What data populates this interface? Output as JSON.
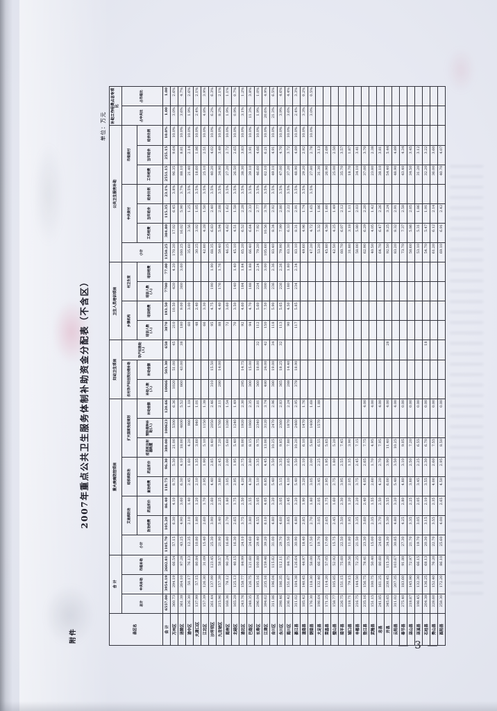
{
  "page": {
    "attachment_label": "附件",
    "unit_note": "单位：万元",
    "page_number": "— 3 —"
  },
  "title": "2007年重点公共卫生服务体制补助资金分配表（不含区）",
  "table": {
    "header_tree": [
      {
        "l": "县区名"
      },
      {
        "l": "合  计",
        "c": [
          {
            "l": "总计"
          },
          {
            "l": "中央补助"
          },
          {
            "l": "市级补助"
          }
        ]
      },
      {
        "l": "重大疾病防控项目",
        "c": [
          {
            "l": "小计"
          },
          {
            "l": "艾滋病防治",
            "c": [
              {
                "l": "防治经费"
              },
              {
                "l": "药品折价"
              }
            ]
          },
          {
            "l": "结核病防治",
            "c": [
              {
                "l": "查治经费"
              },
              {
                "l": "药品折价"
              }
            ]
          },
          {
            "l": "扩大国家免疫规划",
            "c": [
              {
                "l": "疫苗和注射器购置"
              },
              {
                "l": "预防接种补助(人)"
              },
              {
                "l": "补助金额"
              }
            ]
          }
        ]
      },
      {
        "l": "妇幼卫生项目",
        "c": [
          {
            "l": "农村孕产妇住院分娩补助",
            "c": [
              {
                "l": "补助人数(人)"
              },
              {
                "l": "补助金额"
              }
            ]
          },
          {
            "l": "孕产妇救助(人)"
          }
        ]
      },
      {
        "l": "卫生人员培训项目",
        "c": [
          {
            "l": "乡镇机构",
            "c": [
              {
                "l": "培训人数(人)"
              },
              {
                "l": "培训经费"
              }
            ]
          },
          {
            "l": "村卫生室",
            "c": [
              {
                "l": "培训人数(人)"
              },
              {
                "l": "培训经费"
              }
            ]
          }
        ]
      },
      {
        "l": "公共卫生服务补助",
        "c": [
          {
            "l": "小计"
          },
          {
            "l": "中央拨付",
            "c": [
              {
                "l": "工作经费"
              },
              {
                "l": "当年结余"
              },
              {
                "l": "结余比例"
              }
            ]
          },
          {
            "l": "市级拨付",
            "c": [
              {
                "l": "工作经费"
              },
              {
                "l": "当年结余"
              },
              {
                "l": "结余比例"
              }
            ]
          }
        ]
      },
      {
        "l": "补助工作经费占总专项比",
        "c": [
          {
            "l": "占中央比"
          },
          {
            "l": "占市级比"
          }
        ]
      }
    ],
    "rows": [
      [
        "合 计",
        "6557.00",
        "3954.19",
        "2602.81",
        "1105.70",
        "105.20",
        "86.40",
        "118.75",
        "96.30",
        "380.00",
        "100623",
        "120.66",
        "10066",
        "503.30",
        "658",
        "3870",
        "193.50",
        "7700",
        "77.00",
        "1350.25",
        "384.80",
        "115.35",
        "23.1%",
        "2551.15",
        "255.15",
        "10.0%",
        "1.00",
        "1.00"
      ],
      [
        "万州区",
        "360.73",
        "294.19",
        "66.54",
        "57.15",
        "6.30",
        "4.10",
        "8.75",
        "5.30",
        "21.00",
        "5300",
        "6.36",
        "1020",
        "51.00",
        "45",
        "210",
        "10.50",
        "420",
        "4.20",
        "170.20",
        "17.02",
        "6.45",
        "3.8%",
        "96.35",
        "9.64",
        "10.0%",
        "3.0%",
        "2.6%"
      ],
      [
        "涪陵区",
        "361.38",
        "264.10",
        "97.28",
        "43.25",
        "4.90",
        "3.60",
        "6.30",
        "4.10",
        "18.00",
        "4600",
        "5.52",
        "860",
        "43.00",
        "38",
        "180",
        "9.00",
        "360",
        "3.60",
        "160.25",
        "16.02",
        "5.90",
        "3.7%",
        "88.10",
        "8.81",
        "10.0%",
        "3.6%",
        "4.7%"
      ],
      [
        "渝中区",
        "126.30",
        "50.17",
        "76.13",
        "12.35",
        "2.10",
        "1.40",
        "2.45",
        "1.60",
        "4.20",
        "980",
        "1.18",
        "",
        "",
        "",
        "60",
        "3.00",
        "",
        "",
        "35.60",
        "3.56",
        "1.25",
        "3.5%",
        "21.40",
        "2.14",
        "10.0%",
        "1.9%",
        "2.6%"
      ],
      [
        "大渡口区",
        "137.99",
        "57.15",
        "80.84",
        "10.80",
        "1.80",
        "1.20",
        "2.10",
        "1.35",
        "3.60",
        "840",
        "1.01",
        "",
        "",
        "",
        "48",
        "2.40",
        "",
        "",
        "30.25",
        "3.02",
        "1.05",
        "3.5%",
        "18.60",
        "1.86",
        "10.0%",
        "2.4%",
        "2.1%"
      ],
      [
        "江北区",
        "157.39",
        "126.30",
        "31.09",
        "15.40",
        "2.60",
        "1.70",
        "2.95",
        "1.90",
        "5.10",
        "1150",
        "1.38",
        "",
        "",
        "",
        "66",
        "3.30",
        "",
        "",
        "42.80",
        "4.28",
        "1.50",
        "3.5%",
        "25.10",
        "2.51",
        "10.0%",
        "4.8%",
        "3.9%"
      ],
      [
        "沙坪坝区",
        "261.44",
        "137.99",
        "123.45",
        "25.30",
        "3.90",
        "2.60",
        "4.40",
        "2.85",
        "8.40",
        "2050",
        "2.46",
        "310",
        "15.50",
        "",
        "95",
        "4.75",
        "190",
        "1.90",
        "68.35",
        "6.83",
        "2.40",
        "3.5%",
        "40.20",
        "4.02",
        "10.0%",
        "6.2%",
        "6.3%"
      ],
      [
        "九龙坡区",
        "215.96",
        "157.39",
        "58.57",
        "21.90",
        "3.40",
        "2.25",
        "3.80",
        "2.45",
        "7.20",
        "1760",
        "2.11",
        "280",
        "14.00",
        "",
        "88",
        "4.40",
        "176",
        "1.76",
        "59.40",
        "5.94",
        "2.08",
        "3.5%",
        "34.90",
        "3.49",
        "10.0%",
        "8.2%",
        "2.1%"
      ],
      [
        "南岸区",
        "168.36",
        "78.12",
        "90.24",
        "16.80",
        "2.70",
        "1.80",
        "3.05",
        "2.00",
        "5.60",
        "1280",
        "1.54",
        "",
        "",
        "",
        "72",
        "3.60",
        "",
        "",
        "46.25",
        "4.62",
        "1.62",
        "3.5%",
        "27.20",
        "2.72",
        "10.0%",
        "1.9%",
        "1.1%"
      ],
      [
        "北碚区",
        "165.28",
        "125.13",
        "40.15",
        "16.30",
        "2.65",
        "1.75",
        "2.95",
        "1.95",
        "5.40",
        "1240",
        "1.49",
        "",
        "",
        "",
        "70",
        "3.50",
        "140",
        "1.40",
        "45.10",
        "4.51",
        "1.58",
        "3.5%",
        "26.50",
        "2.65",
        "10.0%",
        "0.9%",
        "0.7%"
      ],
      [
        "渝北区",
        "243.76",
        "158.77",
        "84.99",
        "24.10",
        "3.75",
        "2.50",
        "4.20",
        "2.75",
        "8.00",
        "1920",
        "2.30",
        "295",
        "14.75",
        "",
        "92",
        "4.60",
        "184",
        "1.84",
        "65.20",
        "6.52",
        "2.28",
        "3.5%",
        "38.30",
        "3.83",
        "10.0%",
        "3.1%",
        "1.2%"
      ],
      [
        "巴南区",
        "248.35",
        "126.75",
        "121.60",
        "24.60",
        "3.80",
        "2.55",
        "4.30",
        "2.80",
        "8.15",
        "1960",
        "2.35",
        "300",
        "15.00",
        "",
        "94",
        "4.70",
        "188",
        "1.88",
        "66.40",
        "6.64",
        "2.33",
        "3.5%",
        "39.10",
        "3.91",
        "10.0%",
        "11.3%",
        "3.8%"
      ],
      [
        "长寿区",
        "296.04",
        "195.16",
        "100.88",
        "29.40",
        "4.55",
        "3.05",
        "5.10",
        "3.35",
        "9.75",
        "2340",
        "2.81",
        "360",
        "18.00",
        "32",
        "112",
        "5.60",
        "224",
        "2.24",
        "79.20",
        "7.92",
        "2.77",
        "3.5%",
        "46.60",
        "4.66",
        "10.0%",
        "1.9%",
        "1.0%"
      ],
      [
        "江津区",
        "394.62",
        "235.16",
        "159.46",
        "39.20",
        "6.10",
        "4.05",
        "6.85",
        "4.45",
        "13.00",
        "3120",
        "3.74",
        "480",
        "24.00",
        "42",
        "150",
        "7.50",
        "300",
        "3.00",
        "105.60",
        "10.56",
        "3.70",
        "3.5%",
        "62.10",
        "6.21",
        "10.0%",
        "20.6%",
        "4.9%"
      ],
      [
        "合川区",
        "311.86",
        "196.04",
        "115.82",
        "31.00",
        "4.80",
        "3.20",
        "5.40",
        "3.50",
        "10.25",
        "2470",
        "2.96",
        "380",
        "19.00",
        "34",
        "118",
        "5.90",
        "236",
        "2.36",
        "83.40",
        "8.34",
        "2.92",
        "3.5%",
        "49.10",
        "4.91",
        "10.0%",
        "21.3%",
        "6.5%"
      ],
      [
        "永川区",
        "298.46",
        "186.35",
        "112.11",
        "29.70",
        "4.60",
        "3.05",
        "5.15",
        "3.35",
        "9.85",
        "2360",
        "2.83",
        "365",
        "18.25",
        "32",
        "113",
        "5.65",
        "226",
        "2.26",
        "79.90",
        "7.99",
        "2.80",
        "3.5%",
        "47.00",
        "4.70",
        "10.0%",
        "3.9%",
        "4.6%"
      ],
      [
        "南川区",
        "236.42",
        "151.67",
        "84.75",
        "23.50",
        "3.65",
        "2.45",
        "4.10",
        "2.65",
        "7.80",
        "1870",
        "2.24",
        "288",
        "14.40",
        "",
        "90",
        "4.50",
        "180",
        "1.80",
        "63.30",
        "6.33",
        "2.22",
        "3.5%",
        "37.20",
        "3.72",
        "10.0%",
        "3.6%",
        "4.4%"
      ],
      [
        "綦江县",
        "311.02",
        "184.38",
        "126.64",
        "30.90",
        "4.80",
        "3.20",
        "5.40",
        "3.50",
        "10.20",
        "2460",
        "2.95",
        "378",
        "18.90",
        "",
        "117",
        "5.85",
        "234",
        "2.34",
        "83.10",
        "8.31",
        "2.91",
        "3.5%",
        "48.90",
        "4.89",
        "10.0%",
        "2.4%",
        "3.3%"
      ],
      [
        "潼南县",
        "185.42",
        "140.45",
        "44.97",
        "18.40",
        "2.85",
        "1.90",
        "3.20",
        "2.10",
        "6.10",
        "1470",
        "1.76",
        "",
        "",
        "",
        "",
        "",
        "",
        "",
        "49.60",
        "4.96",
        "1.74",
        "3.5%",
        "29.20",
        "2.92",
        "10.0%",
        "3.3%",
        "0.2%"
      ],
      [
        "铜梁县",
        "176.30",
        "118.30",
        "58.00",
        "17.50",
        "2.70",
        "1.80",
        "3.05",
        "2.00",
        "5.80",
        "1400",
        "1.68",
        "",
        "",
        "",
        "",
        "",
        "",
        "",
        "47.20",
        "4.72",
        "1.65",
        "3.5%",
        "27.80",
        "2.78",
        "10.0%",
        "3.0%",
        "0.5%"
      ],
      [
        "大足县",
        "198.64",
        "132.40",
        "66.24",
        "19.70",
        "3.05",
        "2.05",
        "3.45",
        "2.25",
        "6.55",
        "1570",
        "1.88",
        "",
        "",
        "",
        "",
        "",
        "",
        "",
        "53.20",
        "5.32",
        "1.86",
        "",
        "31.30",
        "3.13",
        "",
        "",
        ""
      ],
      [
        "荣昌县",
        "171.25",
        "114.20",
        "57.05",
        "17.00",
        "2.65",
        "1.75",
        "2.95",
        "1.95",
        "5.65",
        "",
        "",
        "",
        "",
        "",
        "",
        "",
        "",
        "",
        "45.80",
        "4.58",
        "1.60",
        "",
        "26.90",
        "2.69",
        "",
        "",
        ""
      ],
      [
        "璧山县",
        "158.77",
        "105.85",
        "52.92",
        "15.75",
        "2.45",
        "1.60",
        "2.75",
        "1.80",
        "5.20",
        "",
        "",
        "",
        "",
        "",
        "",
        "",
        "",
        "",
        "42.50",
        "4.25",
        "1.49",
        "",
        "25.00",
        "2.50",
        "",
        "",
        ""
      ],
      [
        "梁平县",
        "226.75",
        "151.15",
        "75.60",
        "22.50",
        "3.50",
        "2.30",
        "3.95",
        "2.55",
        "7.45",
        "",
        "",
        "",
        "",
        "",
        "",
        "",
        "",
        "",
        "60.70",
        "6.07",
        "2.12",
        "",
        "35.70",
        "3.57",
        "",
        "",
        ""
      ],
      [
        "城口县",
        "118.71",
        "79.15",
        "39.56",
        "11.80",
        "1.85",
        "1.20",
        "2.05",
        "1.35",
        "3.90",
        "",
        "",
        "",
        "",
        "",
        "",
        "",
        "",
        "",
        "31.80",
        "3.18",
        "1.11",
        "",
        "18.70",
        "1.87",
        "",
        "",
        ""
      ],
      [
        "丰都县",
        "216.75",
        "144.50",
        "72.25",
        "21.50",
        "3.35",
        "2.20",
        "3.75",
        "2.45",
        "7.15",
        "",
        "",
        "",
        "",
        "",
        "",
        "",
        "",
        "",
        "58.00",
        "5.80",
        "2.03",
        "",
        "34.10",
        "3.41",
        "",
        "",
        ""
      ],
      [
        "垫江县",
        "235.16",
        "156.75",
        "78.41",
        "23.30",
        "3.60",
        "2.40",
        "4.05",
        "2.65",
        "7.75",
        "",
        "4.00",
        "",
        "",
        "",
        "",
        "",
        "",
        "",
        "62.90",
        "6.29",
        "2.20",
        "",
        "37.00",
        "3.70",
        "",
        "",
        ""
      ],
      [
        "武隆县",
        "151.15",
        "100.75",
        "50.40",
        "15.00",
        "2.35",
        "1.55",
        "2.60",
        "1.70",
        "4.95",
        "",
        "4.00",
        "",
        "",
        "",
        "",
        "",
        "",
        "",
        "40.50",
        "4.05",
        "1.42",
        "",
        "23.80",
        "2.38",
        "",
        "",
        ""
      ],
      [
        "忠县",
        "241.85",
        "161.25",
        "80.60",
        "24.00",
        "3.70",
        "2.50",
        "4.20",
        "2.70",
        "7.95",
        "",
        "4.00",
        "",
        "",
        "",
        "",
        "",
        "",
        "",
        "64.70",
        "6.47",
        "2.26",
        "",
        "38.10",
        "3.81",
        "",
        "",
        ""
      ],
      [
        "开县",
        "345.65",
        "230.45",
        "115.20",
        "34.30",
        "5.30",
        "3.55",
        "6.00",
        "3.90",
        "11.40",
        "",
        "4.00",
        "",
        "",
        "28",
        "",
        "",
        "",
        "",
        "92.50",
        "9.25",
        "3.24",
        "",
        "54.40",
        "5.44",
        "",
        "",
        ""
      ],
      [
        "云阳县",
        "311.02",
        "207.35",
        "103.67",
        "30.85",
        "4.80",
        "3.20",
        "5.40",
        "3.50",
        "10.25",
        "",
        "4.00",
        "",
        "",
        "",
        "",
        "",
        "",
        "",
        "83.20",
        "8.32",
        "2.91",
        "",
        "48.90",
        "4.89",
        "",
        "",
        ""
      ],
      [
        "奉节县",
        "275.40",
        "183.60",
        "91.80",
        "27.30",
        "4.25",
        "2.80",
        "4.80",
        "3.10",
        "9.05",
        "",
        "0.00",
        "",
        "",
        "",
        "",
        "",
        "",
        "",
        "73.70",
        "7.37",
        "2.58",
        "",
        "43.40",
        "4.34",
        "",
        "",
        ""
      ],
      [
        "巫山县",
        "218.87",
        "145.90",
        "72.97",
        "21.70",
        "3.35",
        "2.25",
        "3.80",
        "2.50",
        "7.20",
        "",
        "0.00",
        "",
        "",
        "",
        "",
        "",
        "",
        "",
        "58.60",
        "5.86",
        "2.05",
        "",
        "34.50",
        "3.45",
        "",
        "",
        ""
      ],
      [
        "巫溪县",
        "198.45",
        "132.30",
        "66.15",
        "19.70",
        "3.05",
        "2.05",
        "3.45",
        "2.25",
        "6.55",
        "",
        "0.00",
        "",
        "",
        "",
        "",
        "",
        "",
        "",
        "53.10",
        "5.31",
        "1.86",
        "",
        "31.20",
        "3.12",
        "",
        "",
        ""
      ],
      [
        "石柱县",
        "204.38",
        "136.25",
        "68.13",
        "20.30",
        "3.15",
        "2.10",
        "3.55",
        "2.30",
        "6.70",
        "",
        "0.00",
        "",
        "",
        "18",
        "",
        "",
        "",
        "",
        "54.70",
        "5.47",
        "1.91",
        "",
        "32.20",
        "3.22",
        "",
        "",
        ""
      ],
      [
        "秀山县",
        "228.60",
        "152.40",
        "76.20",
        "22.70",
        "3.55",
        "2.35",
        "4.00",
        "2.60",
        "7.55",
        "",
        "0.00",
        "",
        "",
        "",
        "",
        "",
        "",
        "",
        "61.20",
        "6.12",
        "2.14",
        "",
        "36.00",
        "3.60",
        "",
        "",
        ""
      ],
      [
        "酉阳县",
        "258.30",
        "172.20",
        "86.10",
        "25.60",
        "4.00",
        "2.65",
        "4.50",
        "2.95",
        "8.50",
        "",
        "0.00",
        "",
        "",
        "",
        "",
        "",
        "",
        "",
        "69.10",
        "6.91",
        "2.42",
        "",
        "40.70",
        "4.07",
        "",
        "",
        ""
      ]
    ]
  }
}
